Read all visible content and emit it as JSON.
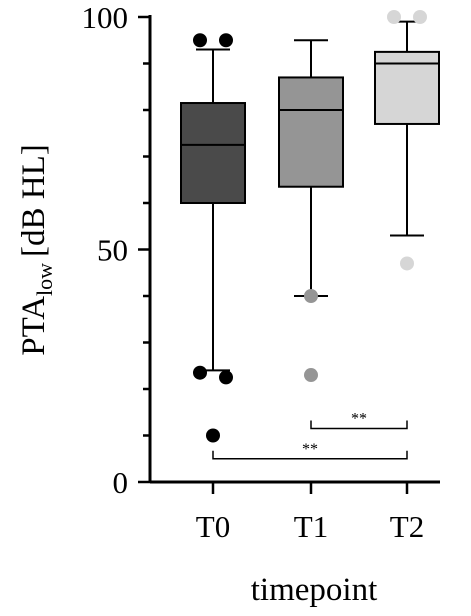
{
  "chart_data": {
    "type": "box",
    "title": "",
    "xlabel": "timepoint",
    "ylabel": {
      "main": "PTA",
      "subscript": "low",
      "unit": "[dB HL]"
    },
    "ylim": [
      0,
      100
    ],
    "yticks": [
      0,
      50,
      100
    ],
    "categories": [
      "T0",
      "T1",
      "T2"
    ],
    "boxes": [
      {
        "category": "T0",
        "color": "#4a4a4a",
        "whisker_low": 24,
        "q1": 60,
        "median": 72.5,
        "q3": 81.5,
        "whisker_high": 93,
        "outliers": [
          95,
          95,
          23.5,
          22.5,
          10
        ]
      },
      {
        "category": "T1",
        "color": "#959595",
        "whisker_low": 40,
        "q1": 63.5,
        "median": 80,
        "q3": 87,
        "whisker_high": 95,
        "outliers": [
          40,
          23
        ]
      },
      {
        "category": "T2",
        "color": "#d6d6d6",
        "whisker_low": 53,
        "q1": 77,
        "median": 90,
        "q3": 92.5,
        "whisker_high": 99,
        "outliers": [
          100,
          100,
          47
        ]
      }
    ],
    "significance": [
      {
        "from": "T1",
        "to": "T2",
        "label": "**",
        "y": 11.5
      },
      {
        "from": "T0",
        "to": "T2",
        "label": "**",
        "y": 5
      }
    ]
  }
}
